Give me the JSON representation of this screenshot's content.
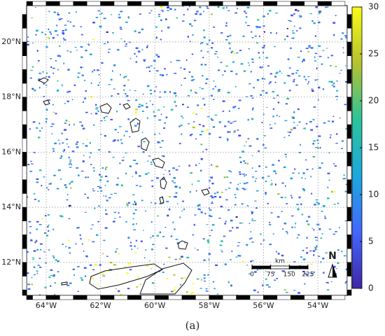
{
  "map": {
    "type": "map",
    "lonlim": [
      -64.72,
      -52.92
    ],
    "latlim": [
      10.8,
      21.32
    ],
    "xticks": [
      {
        "value": -64,
        "label": "64°W"
      },
      {
        "value": -62,
        "label": "62°W"
      },
      {
        "value": -60,
        "label": "60°W"
      },
      {
        "value": -58,
        "label": "58°W"
      },
      {
        "value": -56,
        "label": "56°W"
      },
      {
        "value": -54,
        "label": "54°W"
      }
    ],
    "yticks": [
      {
        "value": 12,
        "label": "12°N"
      },
      {
        "value": 14,
        "label": "14°N"
      },
      {
        "value": 16,
        "label": "16°N"
      },
      {
        "value": 18,
        "label": "18°N"
      },
      {
        "value": 20,
        "label": "20°N"
      }
    ],
    "grid": true,
    "colorbar": {
      "lim": [
        0,
        30
      ],
      "ticks": [
        0,
        5,
        10,
        15,
        20,
        25,
        30
      ]
    },
    "scale_bar": {
      "unit": "km",
      "ticks": [
        0,
        75,
        150,
        225
      ]
    },
    "north_label": "N"
  },
  "caption": "(a)"
}
